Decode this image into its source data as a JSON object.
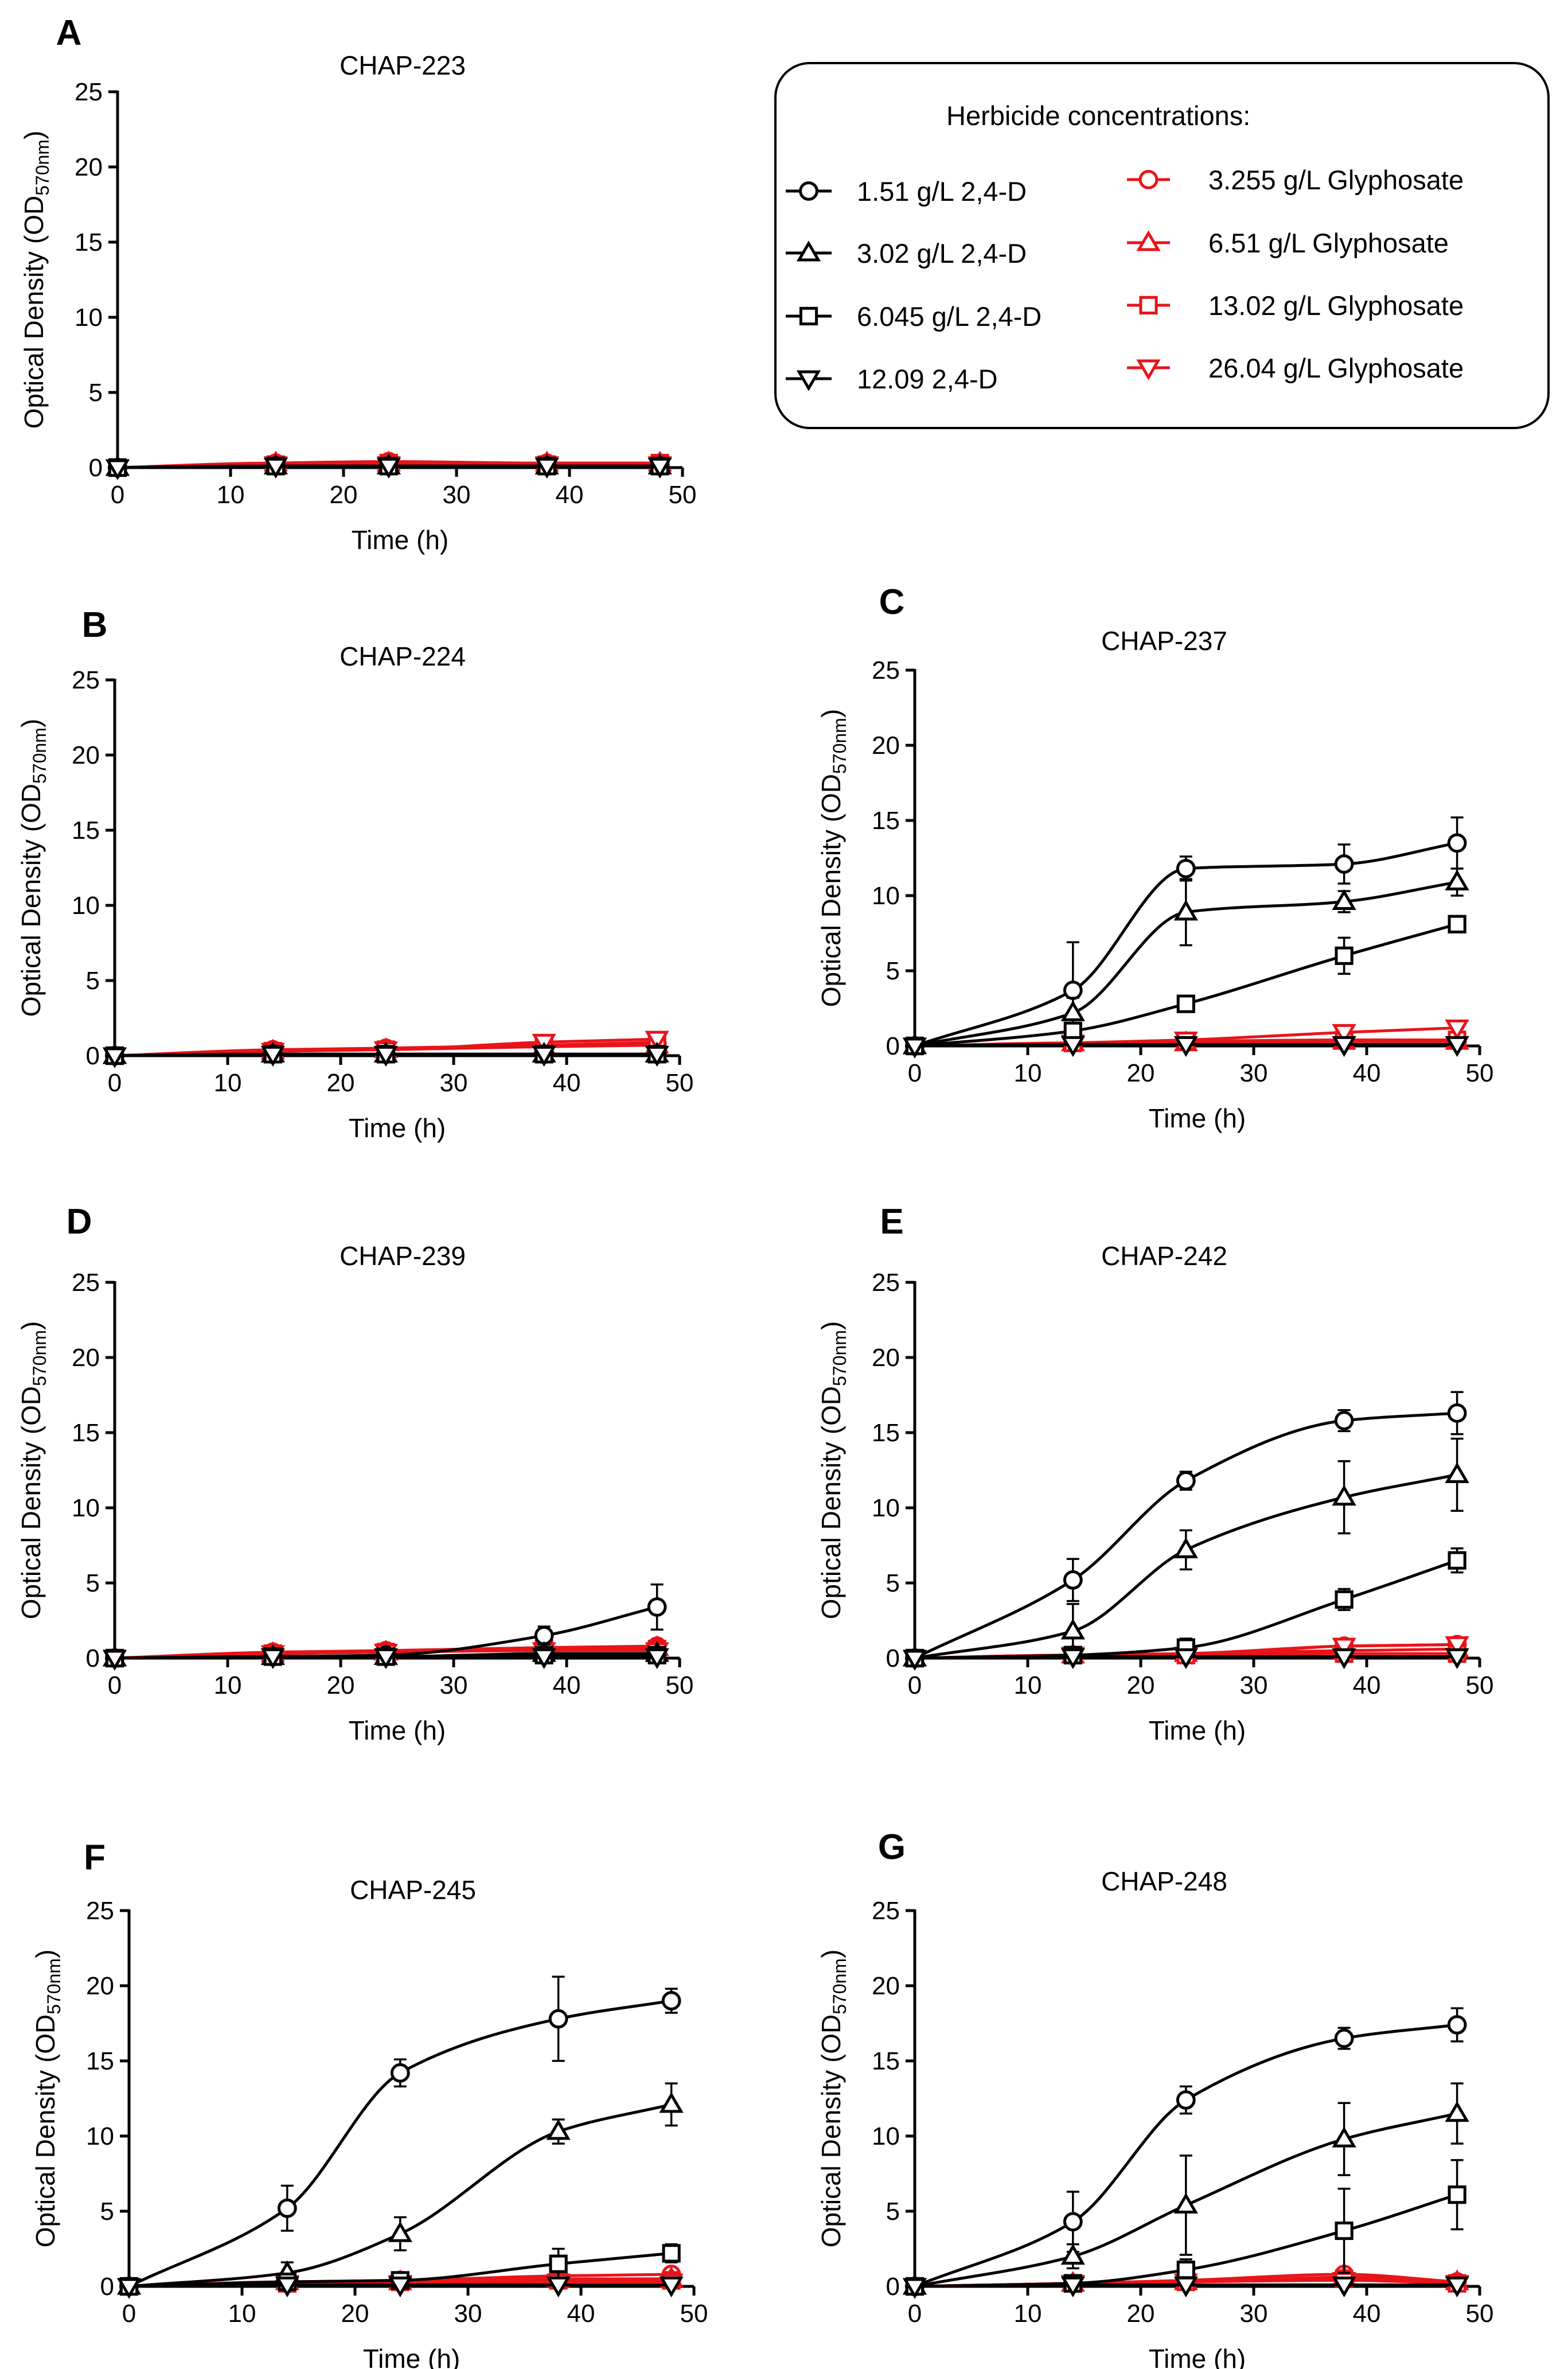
{
  "figure": {
    "axis_defaults": {
      "x_label": "Time (h)",
      "y_label_main": "Optical Density (OD",
      "y_label_sub": "570nm",
      "y_label_close": ")",
      "x_ticks": [
        0,
        10,
        20,
        30,
        40,
        50
      ],
      "y_ticks": [
        0,
        5,
        10,
        15,
        20,
        25
      ],
      "xlim": [
        0,
        50
      ],
      "ylim": [
        0,
        25
      ]
    },
    "colors": {
      "two_four_d": "#000000",
      "glyphosate": "#e8141a"
    },
    "legend": {
      "title": "Herbicide concentrations:",
      "entries": [
        {
          "label": "1.51 g/L 2,4-D",
          "marker": "circle",
          "color": "#000000"
        },
        {
          "label": "3.02 g/L 2,4-D",
          "marker": "triangle-up",
          "color": "#000000"
        },
        {
          "label": "6.045 g/L  2,4-D",
          "marker": "square",
          "color": "#000000"
        },
        {
          "label": "12.09 2,4-D",
          "marker": "triangle-down",
          "color": "#000000"
        },
        {
          "label": "3.255 g/L Glyphosate",
          "marker": "circle",
          "color": "#e8141a"
        },
        {
          "label": "6.51 g/L Glyphosate",
          "marker": "triangle-up",
          "color": "#e8141a"
        },
        {
          "label": "13.02 g/L Glyphosate",
          "marker": "square",
          "color": "#e8141a"
        },
        {
          "label": "26.04 g/L Glyphosate",
          "marker": "triangle-down",
          "color": "#e8141a"
        }
      ]
    }
  },
  "chart_data": [
    {
      "panel": "A",
      "title": "CHAP-223",
      "type": "line",
      "xlabel": "Time (h)",
      "ylabel": "Optical Density (OD570nm)",
      "xlim": [
        0,
        50
      ],
      "ylim": [
        0,
        25
      ],
      "x": [
        0,
        14,
        24,
        38,
        48
      ],
      "series": [
        {
          "name": "1.51 g/L 2,4-D",
          "marker": "circle",
          "color": "#000000",
          "values": [
            0,
            0.1,
            0.1,
            0.1,
            0.1
          ]
        },
        {
          "name": "3.02 g/L 2,4-D",
          "marker": "triangle-up",
          "color": "#000000",
          "values": [
            0,
            0.1,
            0.1,
            0.1,
            0.1
          ]
        },
        {
          "name": "6.045 g/L  2,4-D",
          "marker": "square",
          "color": "#000000",
          "values": [
            0,
            0.1,
            0.1,
            0.1,
            0.1
          ]
        },
        {
          "name": "12.09 2,4-D",
          "marker": "triangle-down",
          "color": "#000000",
          "values": [
            0,
            0.1,
            0.1,
            0.1,
            0.1
          ]
        },
        {
          "name": "3.255 g/L Glyphosate",
          "marker": "circle",
          "color": "#e8141a",
          "values": [
            0,
            0.3,
            0.4,
            0.3,
            0.3
          ]
        },
        {
          "name": "6.51 g/L Glyphosate",
          "marker": "triangle-up",
          "color": "#e8141a",
          "values": [
            0,
            0.3,
            0.3,
            0.3,
            0.3
          ]
        },
        {
          "name": "13.02 g/L Glyphosate",
          "marker": "square",
          "color": "#e8141a",
          "values": [
            0,
            0.2,
            0.3,
            0.2,
            0.3
          ]
        },
        {
          "name": "26.04 g/L Glyphosate",
          "marker": "triangle-down",
          "color": "#e8141a",
          "values": [
            0,
            0.2,
            0.2,
            0.2,
            0.2
          ]
        }
      ]
    },
    {
      "panel": "B",
      "title": "CHAP-224",
      "type": "line",
      "xlabel": "Time (h)",
      "ylabel": "Optical Density (OD570nm)",
      "xlim": [
        0,
        50
      ],
      "ylim": [
        0,
        25
      ],
      "x": [
        0,
        14,
        24,
        38,
        48
      ],
      "series": [
        {
          "name": "1.51 g/L 2,4-D",
          "marker": "circle",
          "color": "#000000",
          "values": [
            0,
            0.1,
            0.1,
            0.1,
            0.1
          ]
        },
        {
          "name": "3.02 g/L 2,4-D",
          "marker": "triangle-up",
          "color": "#000000",
          "values": [
            0,
            0.1,
            0.1,
            0.1,
            0.1
          ]
        },
        {
          "name": "6.045 g/L  2,4-D",
          "marker": "square",
          "color": "#000000",
          "values": [
            0,
            0.1,
            0.1,
            0.1,
            0.1
          ]
        },
        {
          "name": "12.09 2,4-D",
          "marker": "triangle-down",
          "color": "#000000",
          "values": [
            0,
            0.1,
            0.1,
            0.1,
            0.1
          ]
        },
        {
          "name": "3.255 g/L Glyphosate",
          "marker": "circle",
          "color": "#e8141a",
          "values": [
            0,
            0.4,
            0.5,
            0.7,
            0.8
          ]
        },
        {
          "name": "6.51 g/L Glyphosate",
          "marker": "triangle-up",
          "color": "#e8141a",
          "values": [
            0,
            0.3,
            0.4,
            0.6,
            0.7
          ]
        },
        {
          "name": "13.02 g/L Glyphosate",
          "marker": "square",
          "color": "#e8141a",
          "values": [
            0,
            0.3,
            0.4,
            0.7,
            0.9
          ]
        },
        {
          "name": "26.04 g/L Glyphosate",
          "marker": "triangle-down",
          "color": "#e8141a",
          "values": [
            0,
            0.3,
            0.4,
            0.9,
            1.1
          ]
        }
      ]
    },
    {
      "panel": "C",
      "title": "CHAP-237",
      "type": "line",
      "xlabel": "Time (h)",
      "ylabel": "Optical Density (OD570nm)",
      "xlim": [
        0,
        50
      ],
      "ylim": [
        0,
        25
      ],
      "x": [
        0,
        14,
        24,
        38,
        48
      ],
      "series": [
        {
          "name": "1.51 g/L 2,4-D",
          "marker": "circle",
          "color": "#000000",
          "values": [
            0,
            3.7,
            11.8,
            12.1,
            13.5
          ],
          "errors": [
            0,
            3.2,
            0.8,
            1.3,
            1.7
          ]
        },
        {
          "name": "3.02 g/L 2,4-D",
          "marker": "triangle-up",
          "color": "#000000",
          "values": [
            0,
            2.2,
            8.9,
            9.6,
            10.9
          ],
          "errors": [
            0,
            1.0,
            2.2,
            0.7,
            0.9
          ]
        },
        {
          "name": "6.045 g/L  2,4-D",
          "marker": "square",
          "color": "#000000",
          "values": [
            0,
            1.0,
            2.8,
            6.0,
            8.1
          ],
          "errors": [
            0,
            0.5,
            0.3,
            1.2,
            0.5
          ]
        },
        {
          "name": "12.09 2,4-D",
          "marker": "triangle-down",
          "color": "#000000",
          "values": [
            0,
            0.1,
            0.1,
            0.1,
            0.1
          ]
        },
        {
          "name": "3.255 g/L Glyphosate",
          "marker": "circle",
          "color": "#e8141a",
          "values": [
            0,
            0.2,
            0.3,
            0.3,
            0.3
          ]
        },
        {
          "name": "6.51 g/L Glyphosate",
          "marker": "triangle-up",
          "color": "#e8141a",
          "values": [
            0,
            0.2,
            0.2,
            0.3,
            0.3
          ]
        },
        {
          "name": "13.02 g/L Glyphosate",
          "marker": "square",
          "color": "#e8141a",
          "values": [
            0,
            0.2,
            0.3,
            0.4,
            0.4
          ]
        },
        {
          "name": "26.04 g/L Glyphosate",
          "marker": "triangle-down",
          "color": "#e8141a",
          "values": [
            0,
            0.2,
            0.4,
            0.9,
            1.2
          ]
        }
      ]
    },
    {
      "panel": "D",
      "title": "CHAP-239",
      "type": "line",
      "xlabel": "Time (h)",
      "ylabel": "Optical Density (OD570nm)",
      "xlim": [
        0,
        50
      ],
      "ylim": [
        0,
        25
      ],
      "x": [
        0,
        14,
        24,
        38,
        48
      ],
      "series": [
        {
          "name": "1.51 g/L 2,4-D",
          "marker": "circle",
          "color": "#000000",
          "values": [
            0,
            0.1,
            0.2,
            1.5,
            3.4
          ],
          "errors": [
            0,
            0.1,
            0.1,
            0.6,
            1.5
          ]
        },
        {
          "name": "3.02 g/L 2,4-D",
          "marker": "triangle-up",
          "color": "#000000",
          "values": [
            0,
            0.1,
            0.1,
            0.3,
            0.3
          ]
        },
        {
          "name": "6.045 g/L  2,4-D",
          "marker": "square",
          "color": "#000000",
          "values": [
            0,
            0.1,
            0.1,
            0.2,
            0.2
          ]
        },
        {
          "name": "12.09 2,4-D",
          "marker": "triangle-down",
          "color": "#000000",
          "values": [
            0,
            0.1,
            0.1,
            0.1,
            0.1
          ]
        },
        {
          "name": "3.255 g/L Glyphosate",
          "marker": "circle",
          "color": "#e8141a",
          "values": [
            0,
            0.4,
            0.5,
            0.7,
            0.8
          ]
        },
        {
          "name": "6.51 g/L Glyphosate",
          "marker": "triangle-up",
          "color": "#e8141a",
          "values": [
            0,
            0.3,
            0.4,
            0.6,
            0.7
          ]
        },
        {
          "name": "13.02 g/L Glyphosate",
          "marker": "square",
          "color": "#e8141a",
          "values": [
            0,
            0.3,
            0.4,
            0.6,
            0.6
          ]
        },
        {
          "name": "26.04 g/L Glyphosate",
          "marker": "triangle-down",
          "color": "#e8141a",
          "values": [
            0,
            0.3,
            0.4,
            0.5,
            0.5
          ]
        }
      ]
    },
    {
      "panel": "E",
      "title": "CHAP-242",
      "type": "line",
      "xlabel": "Time (h)",
      "ylabel": "Optical Density (OD570nm)",
      "xlim": [
        0,
        50
      ],
      "ylim": [
        0,
        25
      ],
      "x": [
        0,
        14,
        24,
        38,
        48
      ],
      "series": [
        {
          "name": "1.51 g/L 2,4-D",
          "marker": "circle",
          "color": "#000000",
          "values": [
            0,
            5.2,
            11.8,
            15.8,
            16.3
          ],
          "errors": [
            0,
            1.4,
            0.6,
            0.7,
            1.4
          ]
        },
        {
          "name": "3.02 g/L 2,4-D",
          "marker": "triangle-up",
          "color": "#000000",
          "values": [
            0,
            1.8,
            7.2,
            10.7,
            12.2
          ],
          "errors": [
            0,
            1.8,
            1.3,
            2.4,
            2.4
          ]
        },
        {
          "name": "6.045 g/L  2,4-D",
          "marker": "square",
          "color": "#000000",
          "values": [
            0,
            0.2,
            0.7,
            3.9,
            6.5
          ],
          "errors": [
            0,
            0.1,
            0.6,
            0.7,
            0.8
          ]
        },
        {
          "name": "12.09 2,4-D",
          "marker": "triangle-down",
          "color": "#000000",
          "values": [
            0,
            0.1,
            0.1,
            0.1,
            0.1
          ]
        },
        {
          "name": "3.255 g/L Glyphosate",
          "marker": "circle",
          "color": "#e8141a",
          "values": [
            0,
            0.2,
            0.3,
            0.8,
            0.9
          ]
        },
        {
          "name": "6.51 g/L Glyphosate",
          "marker": "triangle-up",
          "color": "#e8141a",
          "values": [
            0,
            0.2,
            0.3,
            0.5,
            0.6
          ]
        },
        {
          "name": "13.02 g/L Glyphosate",
          "marker": "square",
          "color": "#e8141a",
          "values": [
            0,
            0.2,
            0.2,
            0.3,
            0.3
          ]
        },
        {
          "name": "26.04 g/L Glyphosate",
          "marker": "triangle-down",
          "color": "#e8141a",
          "values": [
            0,
            0.2,
            0.2,
            0.8,
            0.9
          ]
        }
      ]
    },
    {
      "panel": "F",
      "title": "CHAP-245",
      "type": "line",
      "xlabel": "Time (h)",
      "ylabel": "Optical Density (OD570nm)",
      "xlim": [
        0,
        50
      ],
      "ylim": [
        0,
        25
      ],
      "x": [
        0,
        14,
        24,
        38,
        48
      ],
      "series": [
        {
          "name": "1.51 g/L 2,4-D",
          "marker": "circle",
          "color": "#000000",
          "values": [
            0,
            5.2,
            14.2,
            17.8,
            19.0
          ],
          "errors": [
            0,
            1.5,
            0.9,
            2.8,
            0.8
          ]
        },
        {
          "name": "3.02 g/L 2,4-D",
          "marker": "triangle-up",
          "color": "#000000",
          "values": [
            0,
            0.9,
            3.5,
            10.3,
            12.1
          ],
          "errors": [
            0,
            0.7,
            1.1,
            0.8,
            1.4
          ]
        },
        {
          "name": "6.045 g/L  2,4-D",
          "marker": "square",
          "color": "#000000",
          "values": [
            0,
            0.3,
            0.4,
            1.5,
            2.2
          ],
          "errors": [
            0,
            0.2,
            0.3,
            1.0,
            0.6
          ]
        },
        {
          "name": "12.09 2,4-D",
          "marker": "triangle-down",
          "color": "#000000",
          "values": [
            0,
            0.1,
            0.1,
            0.1,
            0.1
          ]
        },
        {
          "name": "3.255 g/L Glyphosate",
          "marker": "circle",
          "color": "#e8141a",
          "values": [
            0,
            0.3,
            0.4,
            0.7,
            0.8
          ]
        },
        {
          "name": "6.51 g/L Glyphosate",
          "marker": "triangle-up",
          "color": "#e8141a",
          "values": [
            0,
            0.3,
            0.3,
            0.5,
            0.5
          ]
        },
        {
          "name": "13.02 g/L Glyphosate",
          "marker": "square",
          "color": "#e8141a",
          "values": [
            0,
            0.2,
            0.3,
            0.4,
            0.4
          ]
        },
        {
          "name": "26.04 g/L Glyphosate",
          "marker": "triangle-down",
          "color": "#e8141a",
          "values": [
            0,
            0.2,
            0.2,
            0.3,
            0.3
          ]
        }
      ]
    },
    {
      "panel": "G",
      "title": "CHAP-248",
      "type": "line",
      "xlabel": "Time (h)",
      "ylabel": "Optical Density (OD570nm)",
      "xlim": [
        0,
        50
      ],
      "ylim": [
        0,
        25
      ],
      "x": [
        0,
        14,
        24,
        38,
        48
      ],
      "series": [
        {
          "name": "1.51 g/L 2,4-D",
          "marker": "circle",
          "color": "#000000",
          "values": [
            0,
            4.3,
            12.4,
            16.5,
            17.4
          ],
          "errors": [
            0,
            2.0,
            0.9,
            0.7,
            1.1
          ]
        },
        {
          "name": "3.02 g/L 2,4-D",
          "marker": "triangle-up",
          "color": "#000000",
          "values": [
            0,
            2.0,
            5.4,
            9.8,
            11.5
          ],
          "errors": [
            0,
            0.8,
            3.3,
            2.4,
            2.0
          ]
        },
        {
          "name": "6.045 g/L  2,4-D",
          "marker": "square",
          "color": "#000000",
          "values": [
            0,
            0.2,
            1.1,
            3.7,
            6.1
          ],
          "errors": [
            0,
            0.1,
            0.7,
            2.8,
            2.3
          ]
        },
        {
          "name": "12.09 2,4-D",
          "marker": "triangle-down",
          "color": "#000000",
          "values": [
            0,
            0.1,
            0.1,
            0.1,
            0.1
          ]
        },
        {
          "name": "3.255 g/L Glyphosate",
          "marker": "circle",
          "color": "#e8141a",
          "values": [
            0,
            0.2,
            0.4,
            0.8,
            0.3
          ]
        },
        {
          "name": "6.51 g/L Glyphosate",
          "marker": "triangle-up",
          "color": "#e8141a",
          "values": [
            0,
            0.2,
            0.3,
            0.6,
            0.3
          ]
        },
        {
          "name": "13.02 g/L Glyphosate",
          "marker": "square",
          "color": "#e8141a",
          "values": [
            0,
            0.2,
            0.3,
            0.5,
            0.2
          ]
        },
        {
          "name": "26.04 g/L Glyphosate",
          "marker": "triangle-down",
          "color": "#e8141a",
          "values": [
            0,
            0.2,
            0.3,
            0.4,
            0.2
          ]
        }
      ]
    }
  ]
}
